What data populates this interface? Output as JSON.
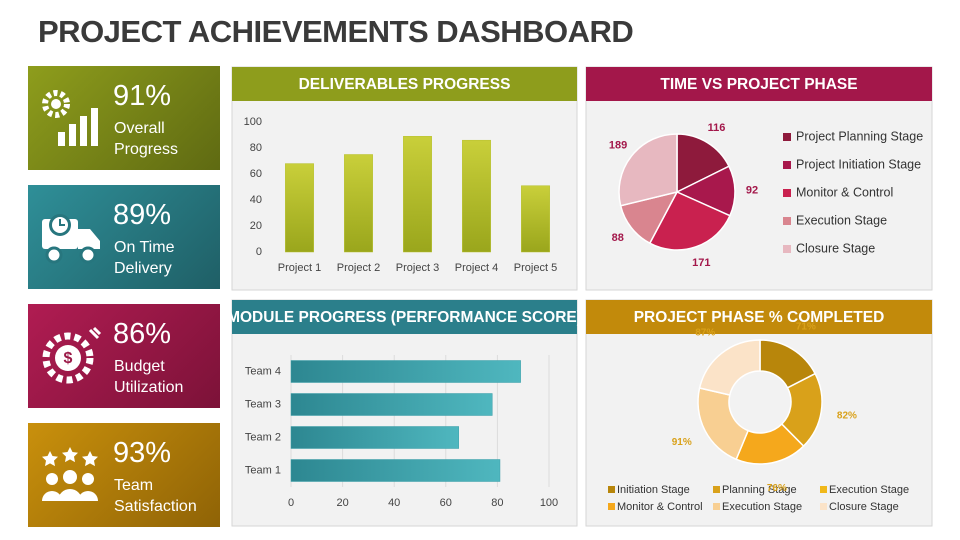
{
  "title": "PROJECT ACHIEVEMENTS DASHBOARD",
  "kpis": [
    {
      "value": "91%",
      "label": "Overall Progress"
    },
    {
      "value": "89%",
      "label": "On Time Delivery"
    },
    {
      "value": "86%",
      "label": "Budget Utilization"
    },
    {
      "value": "93%",
      "label": "Team Satisfaction"
    }
  ],
  "chart_data": [
    {
      "type": "bar",
      "title": "DELIVERABLES PROGRESS",
      "categories": [
        "Project 1",
        "Project 2",
        "Project 3",
        "Project 4",
        "Project 5"
      ],
      "values": [
        68,
        75,
        89,
        86,
        51
      ],
      "color": "#b5bf2a",
      "ylim": [
        0,
        100
      ],
      "yticks": [
        0,
        20,
        40,
        60,
        80,
        100
      ],
      "grid": false
    },
    {
      "type": "pie",
      "title": "TIME VS PROJECT PHASE",
      "categories": [
        "Project Planning Stage",
        "Project Initiation Stage",
        "Monitor & Control",
        "Execution Stage",
        "Closure Stage"
      ],
      "values": [
        116,
        92,
        171,
        88,
        189
      ],
      "colors": [
        "#8e1a3c",
        "#a8184c",
        "#c9214f",
        "#d9858f",
        "#e7b8c0"
      ]
    },
    {
      "type": "hbar",
      "title": "MODULE PROGRESS (PERFORMANCE SCORE)",
      "categories": [
        "Team 1",
        "Team 2",
        "Team 3",
        "Team 4"
      ],
      "values": [
        81,
        65,
        78,
        89
      ],
      "color": "#3a9ea8",
      "xlim": [
        0,
        100
      ],
      "xticks": [
        0,
        20,
        40,
        60,
        80,
        100
      ],
      "grid": true
    },
    {
      "type": "donut",
      "title": "PROJECT PHASE % COMPLETED",
      "categories": [
        "Initiation Stage",
        "Planning Stage",
        "Execution Stage",
        "Monitor & Control",
        "Execution Stage",
        "Closure Stage"
      ],
      "values": [
        71,
        82,
        null,
        76,
        91,
        87
      ],
      "value_labels": [
        "71%",
        "82%",
        null,
        "76%",
        "91%",
        "87%"
      ],
      "colors": [
        "#b8860b",
        "#d9a11a",
        "#f0b81a",
        "#f5a81c",
        "#f8cf92",
        "#fbe3c8"
      ]
    }
  ]
}
